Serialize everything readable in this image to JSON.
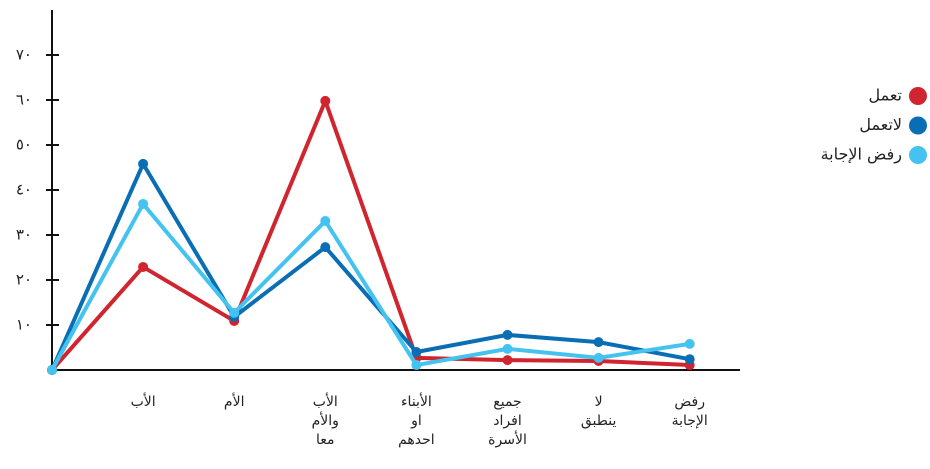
{
  "chart_data": {
    "type": "line",
    "categories": [
      null,
      "الأب",
      "الأم",
      "الأب والأم معا",
      "الأبناء او احدهم",
      "جميع افراد الأسرة",
      "لا ينطبق",
      "رفض الإجابة"
    ],
    "series": [
      {
        "name": "تعمل",
        "color": "#d0252f",
        "values": [
          0,
          22.9,
          10.9,
          59.8,
          2.7,
          2.2,
          2,
          1.1
        ]
      },
      {
        "name": "لاتعمل",
        "color": "#0a6eb4",
        "values": [
          0,
          45.8,
          11.8,
          27.3,
          4,
          7.8,
          6.2,
          2.4
        ]
      },
      {
        "name": "رفض الإجابة",
        "color": "#45c3f0",
        "values": [
          0,
          36.9,
          12.7,
          33.1,
          1.1,
          4.7,
          2.7,
          5.8
        ]
      }
    ],
    "ylim": [
      0,
      80
    ],
    "yticks": [
      {
        "value": 10,
        "label": "١٠"
      },
      {
        "value": 20,
        "label": "٢٠"
      },
      {
        "value": 30,
        "label": "٣٠"
      },
      {
        "value": 40,
        "label": "٤٠"
      },
      {
        "value": 50,
        "label": "٥٠"
      },
      {
        "value": 60,
        "label": "٦٠"
      },
      {
        "value": 70,
        "label": "٧٠"
      }
    ],
    "legend": "right"
  }
}
